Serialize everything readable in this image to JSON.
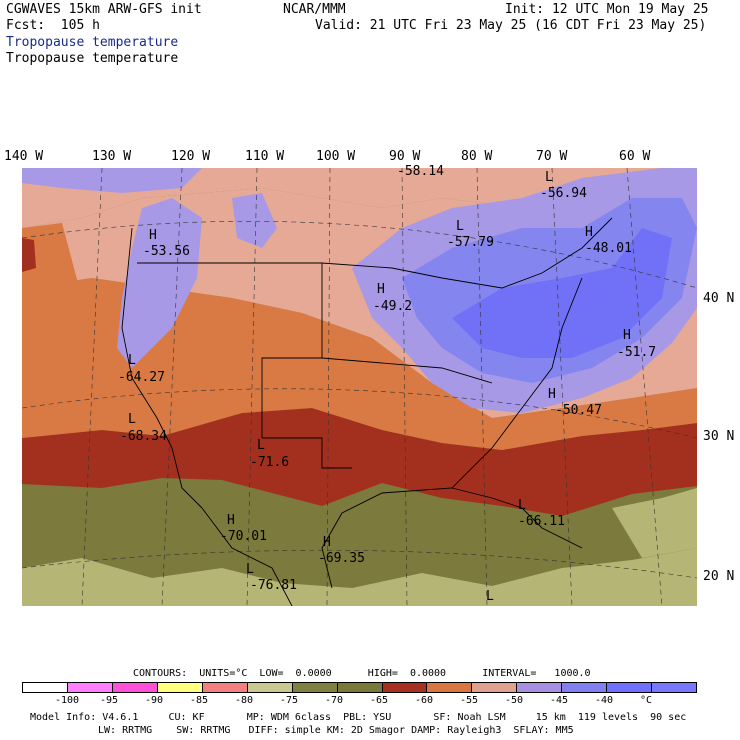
{
  "header": {
    "title": "CGWAVES 15km ARW-GFS init",
    "org": "NCAR/MMM",
    "init": "Init: 12 UTC Mon 19 May 25",
    "fcst": "Fcst:  105 h",
    "valid": "Valid: 21 UTC Fri 23 May 25 (16 CDT Fri 23 May 25)",
    "field_line1": "Tropopause temperature",
    "field_line2": "Tropopause temperature"
  },
  "longitude_labels": [
    "140 W",
    "130 W",
    "120 W",
    "110 W",
    "100 W",
    "90 W",
    "80 W",
    "70 W",
    "60 W"
  ],
  "latitude_labels": [
    "40 N",
    "30 N",
    "20 N"
  ],
  "extrema_labels": [
    {
      "type": "L",
      "value": "-58.14"
    },
    {
      "type": "L",
      "value": "-56.94"
    },
    {
      "type": "L",
      "value": "-57.79"
    },
    {
      "type": "H",
      "value": "-53.56"
    },
    {
      "type": "H",
      "value": "-48.01"
    },
    {
      "type": "H",
      "value": "-49.2"
    },
    {
      "type": "H",
      "value": "-51.7"
    },
    {
      "type": "L",
      "value": "-64.27"
    },
    {
      "type": "H",
      "value": "-50.47"
    },
    {
      "type": "L",
      "value": "-68.34"
    },
    {
      "type": "L",
      "value": "-71.6"
    },
    {
      "type": "H",
      "value": "-70.01"
    },
    {
      "type": "L",
      "value": "-66.11"
    },
    {
      "type": "H",
      "value": "-69.35"
    },
    {
      "type": "L",
      "value": "-76.81"
    },
    {
      "type": "L",
      "value": ""
    }
  ],
  "contours_line": "CONTOURS:  UNITS=°C  LOW=  0.0000      HIGH=  0.0000      INTERVAL=   1000.0",
  "colorbar": {
    "colors": [
      "#ffffff",
      "#ff80ff",
      "#ff50d8",
      "#ffff80",
      "#f28080",
      "#c8c890",
      "#808040",
      "#7a7a38",
      "#a83020",
      "#d87840",
      "#e0a090",
      "#a890e0",
      "#8080f0",
      "#7070ff",
      "#7878ff"
    ],
    "ticks": [
      "-100",
      "-95",
      "-90",
      "-85",
      "-80",
      "-75",
      "-70",
      "-65",
      "-60",
      "-55",
      "-50",
      "-45",
      "-40",
      "°C"
    ]
  },
  "model_info_1": "Model Info: V4.6.1     CU: KF       MP: WDM 6class  PBL: YSU       SF: Noah LSM     15 km  119 levels  90 sec",
  "model_info_2": "LW: RRTMG    SW: RRTMG   DIFF: simple KM: 2D Smagor DAMP: Rayleigh3  SFLAY: MM5"
}
